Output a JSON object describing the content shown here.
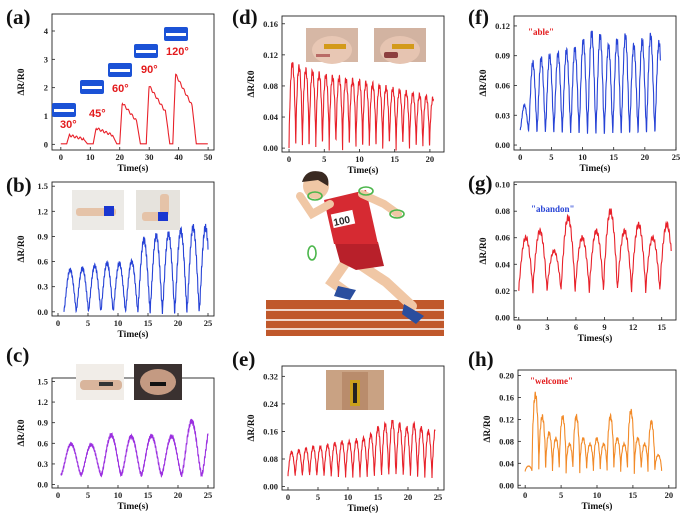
{
  "panel_labels": {
    "a": "(a)",
    "b": "(b)",
    "c": "(c)",
    "d": "(d)",
    "e": "(e)",
    "f": "(f)",
    "g": "(g)",
    "h": "(h)"
  },
  "angles": [
    "30°",
    "45°",
    "60°",
    "90°",
    "120°"
  ],
  "words": {
    "f": "\"able\"",
    "g": "\"abandon\"",
    "h": "\"welcome\""
  },
  "chart_data": [
    {
      "id": "a",
      "type": "line",
      "color": "#e8212a",
      "xlabel": "Time(s)",
      "ylabel": "ΔR/R0",
      "xticks": [
        0,
        10,
        20,
        30,
        40,
        50
      ],
      "yticks": [
        0,
        1,
        2,
        3,
        4
      ],
      "xlim": [
        -3,
        52
      ],
      "ylim": [
        -0.2,
        4.6
      ],
      "pulse": {
        "starts": [
          2,
          11,
          20,
          29,
          38
        ],
        "ends": [
          9,
          19,
          27,
          37,
          46
        ],
        "heights": [
          0.3,
          0.55,
          1.45,
          2.05,
          2.45
        ]
      },
      "annotations": [
        "30°",
        "45°",
        "60°",
        "90°",
        "120°"
      ]
    },
    {
      "id": "b",
      "type": "line",
      "color": "#2743d6",
      "xlabel": "Time(s)",
      "ylabel": "ΔR/R0",
      "xticks": [
        0,
        5,
        10,
        15,
        20,
        25
      ],
      "yticks": [
        0.0,
        0.3,
        0.6,
        0.9,
        1.2,
        1.5
      ],
      "xlim": [
        -1,
        26
      ],
      "ylim": [
        -0.05,
        1.55
      ],
      "osc": {
        "t0": 1,
        "t1": 25,
        "period": 2.05,
        "base": 0.01,
        "sharp": 1.2,
        "amps": [
          0.49,
          0.51,
          0.54,
          0.57,
          0.57,
          0.59,
          0.85,
          0.9,
          0.92,
          0.96,
          1.0
        ]
      }
    },
    {
      "id": "c",
      "type": "line",
      "color": "#9b30e0",
      "xlabel": "Time(s)",
      "ylabel": "ΔR/R0",
      "xticks": [
        0,
        5,
        10,
        15,
        20,
        25
      ],
      "yticks": [
        0.0,
        0.3,
        0.6,
        0.9,
        1.2,
        1.5
      ],
      "xlim": [
        -1,
        26
      ],
      "ylim": [
        -0.05,
        1.55
      ],
      "osc": {
        "t0": 0.5,
        "t1": 25,
        "period": 3.35,
        "base": 0.14,
        "sharp": 1.5,
        "amps": [
          0.45,
          0.44,
          0.58,
          0.56,
          0.57,
          0.56,
          0.78
        ]
      }
    },
    {
      "id": "d",
      "type": "line",
      "color": "#e8212a",
      "xlabel": "Time(s)",
      "ylabel": "ΔR/R0",
      "xticks": [
        0,
        5,
        10,
        15,
        20
      ],
      "yticks": [
        0.0,
        0.04,
        0.08,
        0.12,
        0.16
      ],
      "xlim": [
        -1,
        22
      ],
      "ylim": [
        -0.005,
        0.17
      ],
      "osc": {
        "t0": 0,
        "t1": 20.5,
        "period": 0.95,
        "base": 0.0,
        "sharp": 0.7,
        "amps": [
          0.108,
          0.104,
          0.1,
          0.098,
          0.095,
          0.093,
          0.091,
          0.09,
          0.088,
          0.087,
          0.086,
          0.084,
          0.082,
          0.08,
          0.078,
          0.076,
          0.074,
          0.072,
          0.07,
          0.068,
          0.066,
          0.064
        ]
      }
    },
    {
      "id": "e",
      "type": "line",
      "color": "#e8212a",
      "xlabel": "Time(s)",
      "ylabel": "ΔR/R0",
      "xticks": [
        0,
        5,
        10,
        15,
        20,
        25
      ],
      "yticks": [
        0.0,
        0.08,
        0.16,
        0.24,
        0.32
      ],
      "xlim": [
        -1,
        26
      ],
      "ylim": [
        -0.01,
        0.35
      ],
      "osc": {
        "t0": 0,
        "t1": 24.5,
        "period": 1.2,
        "base": 0.03,
        "sharp": 0.9,
        "amps": [
          0.07,
          0.075,
          0.08,
          0.085,
          0.085,
          0.09,
          0.095,
          0.1,
          0.1,
          0.105,
          0.11,
          0.12,
          0.14,
          0.15,
          0.16,
          0.15,
          0.14,
          0.15,
          0.14,
          0.13,
          0.14
        ]
      }
    },
    {
      "id": "f",
      "type": "line",
      "color": "#2743d6",
      "xlabel": "Time(s)",
      "ylabel": "ΔR/R0",
      "xticks": [
        0,
        5,
        10,
        15,
        20,
        25
      ],
      "yticks": [
        0.0,
        0.03,
        0.06,
        0.09,
        0.12
      ],
      "xlim": [
        -1,
        25
      ],
      "ylim": [
        -0.005,
        0.13
      ],
      "osc": {
        "t0": 0,
        "t1": 22.5,
        "period": 1.35,
        "base": 0.015,
        "sharp": 1.3,
        "amps": [
          0.025,
          0.068,
          0.072,
          0.075,
          0.077,
          0.08,
          0.082,
          0.09,
          0.098,
          0.095,
          0.085,
          0.09,
          0.095,
          0.085,
          0.09,
          0.095,
          0.088
        ]
      }
    },
    {
      "id": "g",
      "type": "line",
      "color": "#e8212a",
      "xlabel": "Times(s)",
      "ylabel": "ΔR/R0",
      "xticks": [
        0,
        3,
        6,
        9,
        12,
        15
      ],
      "yticks": [
        0.0,
        0.02,
        0.04,
        0.06,
        0.08,
        0.1
      ],
      "xlim": [
        -0.5,
        16.5
      ],
      "ylim": [
        -0.002,
        0.102
      ],
      "osc": {
        "t0": 0,
        "t1": 16,
        "period": 1.48,
        "base": 0.02,
        "sharp": 0.9,
        "amps": [
          0.04,
          0.045,
          0.03,
          0.055,
          0.04,
          0.045,
          0.06,
          0.045,
          0.05,
          0.04,
          0.05,
          0.04
        ]
      }
    },
    {
      "id": "h",
      "type": "line",
      "color": "#f28a28",
      "xlabel": "Time(s)",
      "ylabel": "ΔR/R0",
      "xticks": [
        0,
        5,
        10,
        15,
        20
      ],
      "yticks": [
        0.0,
        0.04,
        0.08,
        0.12,
        0.16,
        0.2
      ],
      "xlim": [
        -1,
        21
      ],
      "ylim": [
        -0.005,
        0.21
      ],
      "osc": {
        "t0": 0,
        "t1": 19,
        "period": 0.95,
        "base": 0.025,
        "sharp": 0.6,
        "amps": [
          0.01,
          0.14,
          0.1,
          0.07,
          0.06,
          0.1,
          0.05,
          0.1,
          0.06,
          0.05,
          0.06,
          0.05,
          0.1,
          0.06,
          0.05,
          0.11,
          0.06,
          0.05,
          0.09,
          0.03
        ]
      }
    }
  ]
}
